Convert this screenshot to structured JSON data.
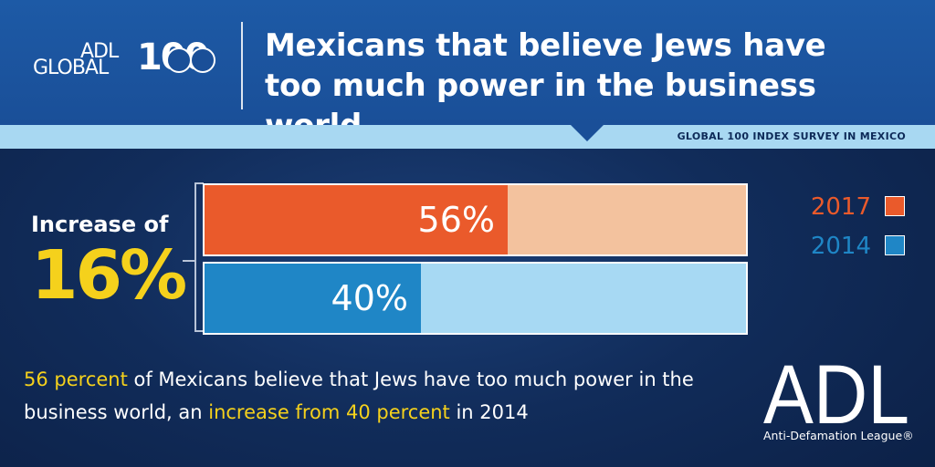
{
  "header": {
    "logo_adl": "ADL",
    "logo_global": "GLOBAL",
    "logo_number": "100",
    "title_line1": "Mexicans that believe Jews have",
    "title_line2": "too much power in the business world"
  },
  "strip": {
    "label": "GLOBAL 100 INDEX SURVEY IN MEXICO"
  },
  "increase": {
    "label": "Increase of",
    "value": "16%"
  },
  "legend": [
    {
      "label": "2017",
      "color": "#ea5a2b"
    },
    {
      "label": "2014",
      "color": "#1f86c6"
    }
  ],
  "chart_data": {
    "type": "bar",
    "orientation": "horizontal",
    "categories": [
      "2017",
      "2014"
    ],
    "values": [
      56,
      40
    ],
    "value_labels": [
      "56%",
      "40%"
    ],
    "xlim": [
      0,
      100
    ],
    "colors": {
      "2017": {
        "fill": "#ea5a2b",
        "track": "#f3c29e"
      },
      "2014": {
        "fill": "#1f86c6",
        "track": "#a7d9f3"
      }
    },
    "legend_position": "right"
  },
  "footnote": {
    "part1": "56 percent",
    "part2": " of Mexicans believe that Jews have too much power in the business world, an ",
    "part3": "increase from 40 percent",
    "part4": " in 2014"
  },
  "footer_logo": {
    "text": "ADL",
    "subtitle": "Anti-Defamation League®"
  }
}
